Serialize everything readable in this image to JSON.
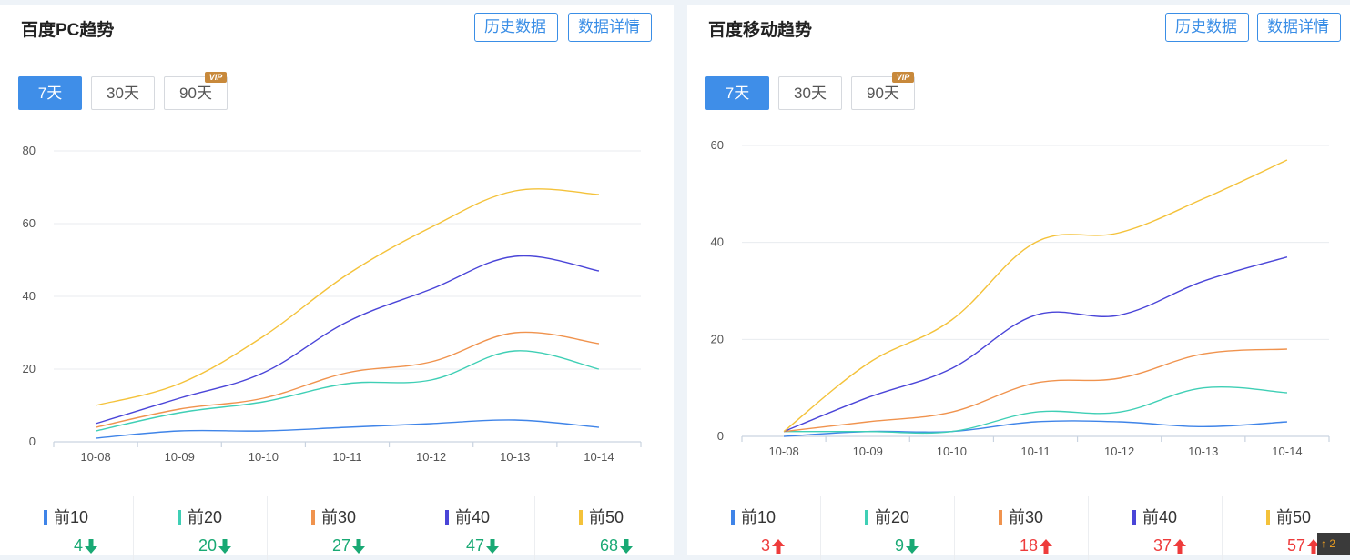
{
  "colors": {
    "top10": "#3f84e8",
    "top20": "#3fcfb5",
    "top30": "#f0934e",
    "top40": "#4a45d8",
    "top50": "#f4c23a",
    "accent": "#3f8ee8",
    "down": "#19a974",
    "up": "#ee3b3b"
  },
  "panels": {
    "pc": {
      "title": "百度PC趋势",
      "history_btn": "历史数据",
      "detail_btn": "数据详情",
      "ranges": [
        "7天",
        "30天",
        "90天"
      ],
      "vip_badge": "VIP",
      "stats": [
        {
          "label": "前10",
          "value": "4",
          "trend": "down"
        },
        {
          "label": "前20",
          "value": "20",
          "trend": "down"
        },
        {
          "label": "前30",
          "value": "27",
          "trend": "down"
        },
        {
          "label": "前40",
          "value": "47",
          "trend": "down"
        },
        {
          "label": "前50",
          "value": "68",
          "trend": "down"
        }
      ]
    },
    "mobile": {
      "title": "百度移动趋势",
      "history_btn": "历史数据",
      "detail_btn": "数据详情",
      "ranges": [
        "7天",
        "30天",
        "90天"
      ],
      "vip_badge": "VIP",
      "stats": [
        {
          "label": "前10",
          "value": "3",
          "trend": "up"
        },
        {
          "label": "前20",
          "value": "9",
          "trend": "down"
        },
        {
          "label": "前30",
          "value": "18",
          "trend": "up"
        },
        {
          "label": "前40",
          "value": "37",
          "trend": "up"
        },
        {
          "label": "前50",
          "value": "57",
          "trend": "up"
        }
      ]
    }
  },
  "chart_data": [
    {
      "type": "line",
      "x": [
        "10-08",
        "10-09",
        "10-10",
        "10-11",
        "10-12",
        "10-13",
        "10-14"
      ],
      "ylim": [
        0,
        80
      ],
      "yticks": [
        "0",
        "20",
        "40",
        "60",
        "80"
      ],
      "grid": true,
      "series": [
        {
          "name": "前10",
          "color": "#3f84e8",
          "values": [
            1,
            3,
            3,
            4,
            5,
            6,
            4
          ]
        },
        {
          "name": "前20",
          "color": "#3fcfb5",
          "values": [
            3,
            8,
            11,
            16,
            17,
            25,
            20
          ]
        },
        {
          "name": "前30",
          "color": "#f0934e",
          "values": [
            4,
            9,
            12,
            19,
            22,
            30,
            27
          ]
        },
        {
          "name": "前40",
          "color": "#4a45d8",
          "values": [
            5,
            12,
            19,
            33,
            42,
            51,
            47
          ]
        },
        {
          "name": "前50",
          "color": "#f4c23a",
          "values": [
            10,
            16,
            29,
            46,
            59,
            69,
            68
          ]
        }
      ]
    },
    {
      "type": "line",
      "x": [
        "10-08",
        "10-09",
        "10-10",
        "10-11",
        "10-12",
        "10-13",
        "10-14"
      ],
      "ylim": [
        0,
        60
      ],
      "yticks": [
        "0",
        "20",
        "40",
        "60"
      ],
      "grid": true,
      "series": [
        {
          "name": "前10",
          "color": "#3f84e8",
          "values": [
            0,
            1,
            1,
            3,
            3,
            2,
            3
          ]
        },
        {
          "name": "前20",
          "color": "#3fcfb5",
          "values": [
            1,
            1,
            1,
            5,
            5,
            10,
            9
          ]
        },
        {
          "name": "前30",
          "color": "#f0934e",
          "values": [
            1,
            3,
            5,
            11,
            12,
            17,
            18
          ]
        },
        {
          "name": "前40",
          "color": "#4a45d8",
          "values": [
            1,
            8,
            14,
            25,
            25,
            32,
            37
          ]
        },
        {
          "name": "前50",
          "color": "#f4c23a",
          "values": [
            1,
            15,
            24,
            40,
            42,
            49,
            57
          ]
        }
      ]
    }
  ],
  "scroll_top": {
    "label": "2"
  }
}
